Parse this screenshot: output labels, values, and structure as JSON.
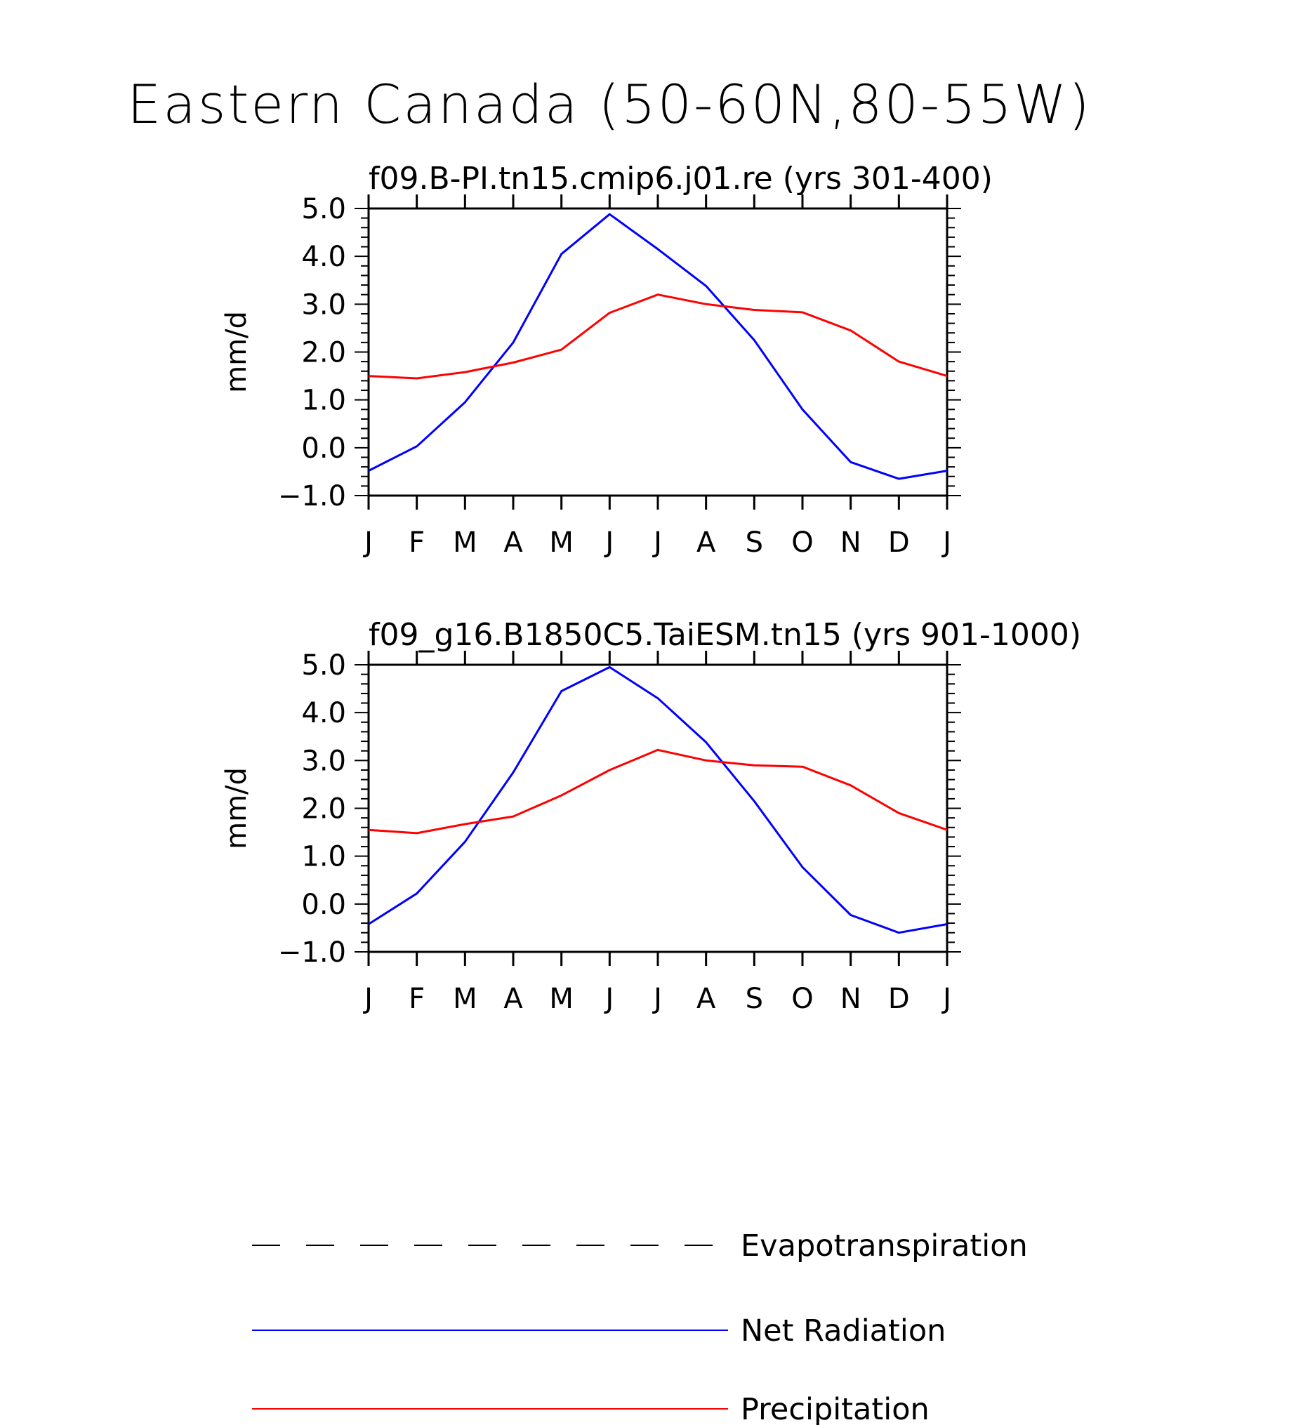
{
  "title": "Eastern Canada (50-60N,80-55W)",
  "colors": {
    "net_radiation": "#0000ff",
    "precipitation": "#ff0000",
    "evapotranspiration": "#000000",
    "axes": "#000000"
  },
  "legend": [
    {
      "label": "Evapotranspiration",
      "style": "dashed",
      "color": "#000000"
    },
    {
      "label": "Net Radiation",
      "style": "solid",
      "color": "#0000ff"
    },
    {
      "label": "Precipitation",
      "style": "solid",
      "color": "#ff0000"
    }
  ],
  "chart_data": [
    {
      "type": "line",
      "title": "f09.B-PI.tn15.cmip6.j01.re (yrs 301-400)",
      "xlabel": "",
      "ylabel": "mm/d",
      "categories": [
        "J",
        "F",
        "M",
        "A",
        "M",
        "J",
        "J",
        "A",
        "S",
        "O",
        "N",
        "D",
        "J"
      ],
      "ylim": [
        -1.0,
        5.0
      ],
      "yticks": [
        "5.0",
        "4.0",
        "3.0",
        "2.0",
        "1.0",
        "0.0",
        "-1.0"
      ],
      "grid": false,
      "series": [
        {
          "name": "Net Radiation",
          "color": "#0000ff",
          "values": [
            -0.48,
            0.03,
            0.95,
            2.2,
            4.05,
            4.88,
            4.15,
            3.38,
            2.25,
            0.8,
            -0.3,
            -0.65,
            -0.48
          ]
        },
        {
          "name": "Precipitation",
          "color": "#ff0000",
          "values": [
            1.5,
            1.45,
            1.58,
            1.78,
            2.05,
            2.82,
            3.2,
            3.0,
            2.88,
            2.83,
            2.45,
            1.8,
            1.5
          ]
        }
      ]
    },
    {
      "type": "line",
      "title": "f09_g16.B1850C5.TaiESM.tn15 (yrs 901-1000)",
      "xlabel": "",
      "ylabel": "mm/d",
      "categories": [
        "J",
        "F",
        "M",
        "A",
        "M",
        "J",
        "J",
        "A",
        "S",
        "O",
        "N",
        "D",
        "J"
      ],
      "ylim": [
        -1.0,
        5.0
      ],
      "yticks": [
        "5.0",
        "4.0",
        "3.0",
        "2.0",
        "1.0",
        "0.0",
        "-1.0"
      ],
      "grid": false,
      "series": [
        {
          "name": "Net Radiation",
          "color": "#0000ff",
          "values": [
            -0.42,
            0.22,
            1.3,
            2.75,
            4.45,
            4.95,
            4.3,
            3.38,
            2.15,
            0.77,
            -0.23,
            -0.6,
            -0.42
          ]
        },
        {
          "name": "Precipitation",
          "color": "#ff0000",
          "values": [
            1.55,
            1.48,
            1.67,
            1.83,
            2.27,
            2.8,
            3.22,
            3.0,
            2.9,
            2.87,
            2.48,
            1.9,
            1.55
          ]
        }
      ]
    }
  ]
}
